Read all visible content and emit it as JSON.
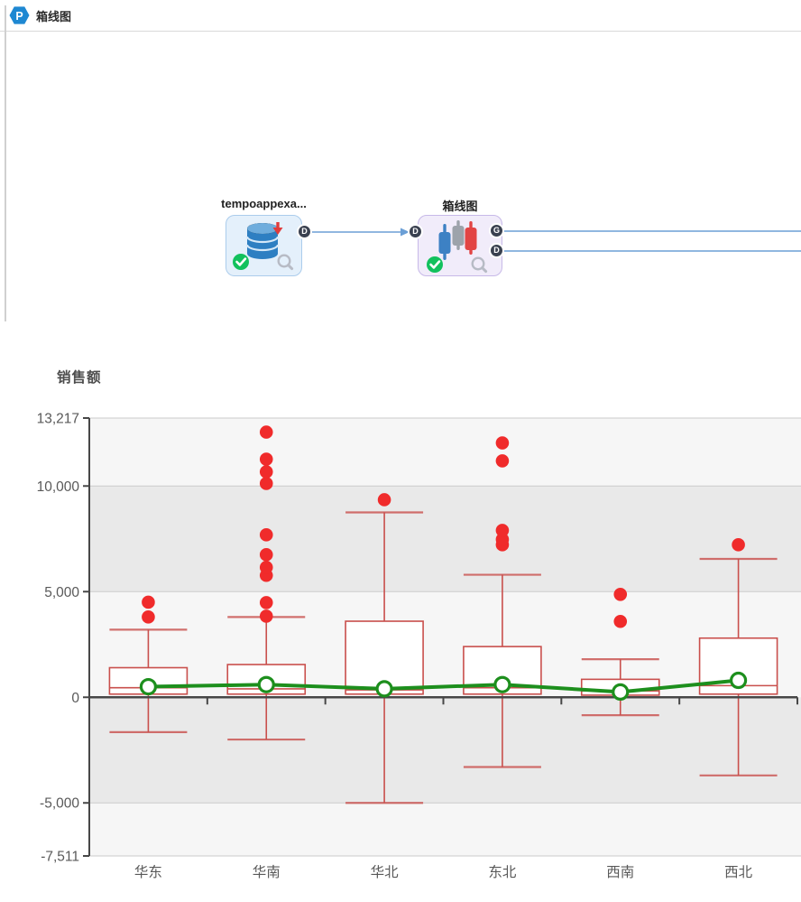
{
  "header": {
    "title": "箱线图",
    "logo_glyph": "P"
  },
  "canvas": {
    "node1": {
      "label": "tempoappexa...",
      "out_port": "D",
      "type": "database-source"
    },
    "node2": {
      "label": "箱线图",
      "in_port": "D",
      "out_port_g": "G",
      "out_port_d": "D",
      "type": "boxplot"
    }
  },
  "chart_data": {
    "type": "boxplot",
    "title": "销售额",
    "categories": [
      "华东",
      "华南",
      "华北",
      "东北",
      "西南",
      "西北"
    ],
    "ylim": [
      -7511,
      13217
    ],
    "grid": true,
    "legend": "none",
    "y_ticks": [
      {
        "label": "13,217",
        "value": 13217
      },
      {
        "label": "10,000",
        "value": 10000
      },
      {
        "label": "5,000",
        "value": 5000
      },
      {
        "label": "0",
        "value": 0
      },
      {
        "label": "-5,000",
        "value": -5000
      },
      {
        "label": "-7,511",
        "value": -7511
      }
    ],
    "boxes": [
      {
        "category": "华东",
        "low": -1650,
        "q1": 150,
        "median": 450,
        "q3": 1400,
        "high": 3200,
        "mean": 500,
        "outliers": [
          3800,
          4500
        ]
      },
      {
        "category": "华南",
        "low": -2000,
        "q1": 150,
        "median": 400,
        "q3": 1550,
        "high": 3800,
        "mean": 600,
        "outliers": [
          3840,
          4480,
          5770,
          6150,
          6750,
          7690,
          10120,
          10670,
          11270,
          12550
        ]
      },
      {
        "category": "华北",
        "low": -5000,
        "q1": 150,
        "median": 350,
        "q3": 3600,
        "high": 8750,
        "mean": 400,
        "outliers": [
          9350
        ]
      },
      {
        "category": "东北",
        "low": -3300,
        "q1": 150,
        "median": 450,
        "q3": 2400,
        "high": 5800,
        "mean": 600,
        "outliers": [
          7220,
          7470,
          7900,
          11190,
          12040
        ]
      },
      {
        "category": "西南",
        "low": -850,
        "q1": 100,
        "median": 300,
        "q3": 850,
        "high": 1800,
        "mean": 250,
        "outliers": [
          3590,
          4870
        ]
      },
      {
        "category": "西北",
        "low": -3700,
        "q1": 150,
        "median": 550,
        "q3": 2800,
        "high": 6550,
        "mean": 800,
        "outliers": [
          7220
        ]
      }
    ],
    "colors": {
      "box": "#c94f4c",
      "outlier": "#f02b2b",
      "mean_line": "#1d8f1d",
      "axis": "#474747",
      "grid": "#cbcbcb",
      "label": "#595959",
      "band_light": "#f6f6f6",
      "band_dark": "#e9e9e9"
    }
  }
}
